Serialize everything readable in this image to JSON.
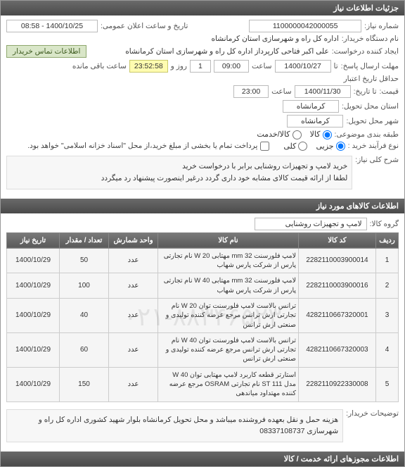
{
  "header_main": "جزئیات اطلاعات نیاز",
  "form": {
    "need_no_label": "شماره نیاز:",
    "need_no": "1100000042000055",
    "announce_label": "تاریخ و ساعت اعلان عمومی:",
    "announce": "1400/10/25 - 08:58",
    "buyer_label": "نام دستگاه خریدار:",
    "buyer": "اداره کل راه و شهرسازی استان کرمانشاه",
    "requester_label": "ایجاد کننده درخواست:",
    "requester": "علی اکبر فتاحی کارپرداز اداره کل راه و شهرسازی استان کرمانشاه",
    "contact_btn": "اطلاعات تماس خریدار",
    "reply_deadline_label": "مهلت ارسال پاسخ:",
    "reply_until": "تا",
    "reply_date": "1400/10/27",
    "time_label": "ساعت",
    "reply_time": "09:00",
    "days_label": "روز و",
    "days": "1",
    "countdown": "23:52:58",
    "remaining": "ساعت باقی مانده",
    "valid_label": "حداقل تاریخ اعتبار",
    "price_until_label": "قیمت:",
    "to_label": "تا تاریخ:",
    "valid_date": "1400/11/30",
    "valid_time": "23:00",
    "province_label": "استان محل تحویل:",
    "province": "کرمانشاه",
    "city_label": "شهر محل تحویل:",
    "city": "کرمانشاه",
    "class_label": "طبقه بندی موضوعی:",
    "class_goods": "کالا",
    "class_service": "کالا/خدمت",
    "process_label": "نوع فرآیند خرید :",
    "process_partial": "جزیی",
    "process_whole": "کلی",
    "checkbox_note": "پرداخت تمام یا بخشی از مبلغ خرید،از محل \"اسناد خزانه اسلامی\" خواهد بود.",
    "summary_label": "شرح کلی نیاز:",
    "summary_l1": "خرید لامپ و تجهیزات روشنایی برابر با درخواست خرید",
    "summary_l2": "لطفا از ارائه قیمت کالای مشابه خود داری گردد درغیر اینصورت پیشنهاد رد میگردد"
  },
  "items_header": "اطلاعات کالاهای مورد نیاز",
  "group_label": "گروه کالا:",
  "group_value": "لامپ و تجهیزات روشنایی",
  "columns": {
    "idx": "ردیف",
    "code": "کد کالا",
    "name": "نام کالا",
    "unit": "واحد شمارش",
    "qty": "تعداد / مقدار",
    "need_date": "تاریخ نیاز"
  },
  "rows": [
    {
      "idx": "1",
      "code": "2282110003900014",
      "name": "لامپ فلورسنت 32 mm مهتابی 20 W نام تجارتی پارس از شرکت پارس شهاب",
      "unit": "عدد",
      "qty": "50",
      "date": "1400/10/29"
    },
    {
      "idx": "2",
      "code": "2282110003900016",
      "name": "لامپ فلورسنت 32 mm مهتابی 40 W نام تجارتی پارس از شرکت پارس شهاب",
      "unit": "عدد",
      "qty": "100",
      "date": "1400/10/29"
    },
    {
      "idx": "3",
      "code": "4282110667320001",
      "name": "ترانس بالاست لامپ فلورسنت توان 20 W نام تجارتی ارش ترانس مرجع عرضه کننده تولیدی و صنعتی ارش ترانس",
      "unit": "عدد",
      "qty": "40",
      "date": "1400/10/29"
    },
    {
      "idx": "4",
      "code": "4282110667320003",
      "name": "ترانس بالاست لامپ فلورسنت توان 40 W نام تجارتی ارش ترانس مرجع عرضه کننده تولیدی و صنعتی ارش ترانس",
      "unit": "عدد",
      "qty": "60",
      "date": "1400/10/29"
    },
    {
      "idx": "5",
      "code": "2282110922330008",
      "name": "استارتر قطعه کاربرد لامپ مهتابی توان 40 W مدل ST 111 نام تجارتی OSRAM مرجع عرضه کننده مهتداود میاندهی",
      "unit": "عدد",
      "qty": "150",
      "date": "1400/10/29"
    }
  ],
  "watermark": "۰۲۱-۸۸۳۴۶۵۲۳",
  "buyer_note_label": "توضیحات خریدار:",
  "buyer_note": "هزینه حمل و نقل بعهده فروشنده میباشد و محل تحویل کرمانشاه بلوار شهید کشوری اداره کل راه و شهرسازی 08337108737",
  "footer": "اطلاعات مجوزهای ارائه خدمت / کالا"
}
